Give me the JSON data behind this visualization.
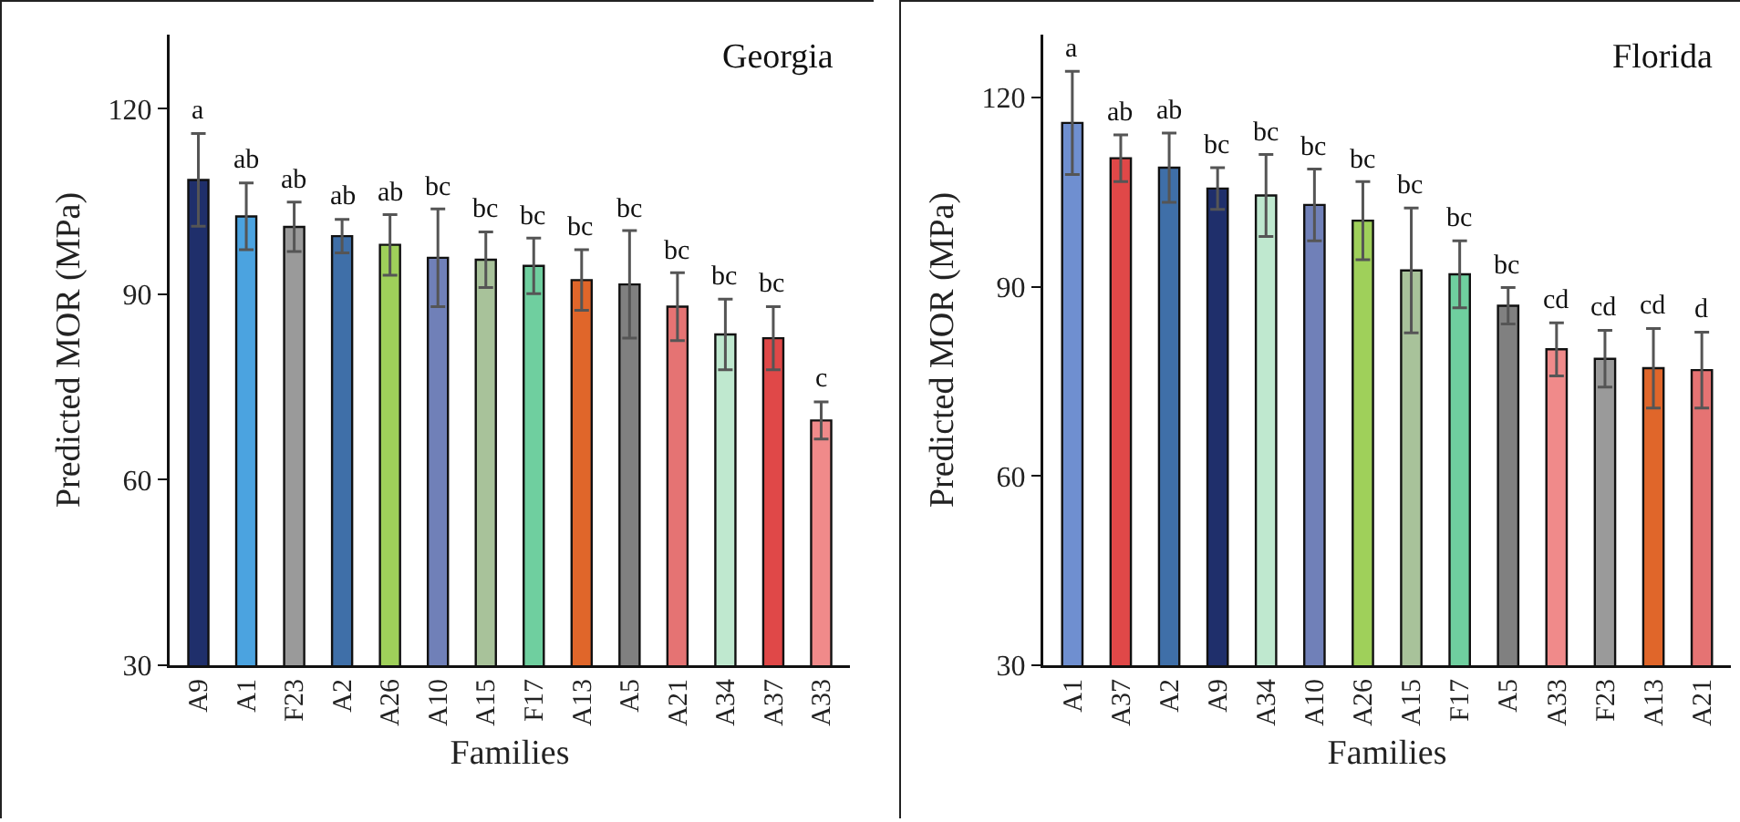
{
  "chart_data": [
    {
      "type": "bar",
      "title": "Georgia",
      "xlabel": "Families",
      "ylabel": "Predicted MOR (MPa)",
      "categories": [
        "A9",
        "A1",
        "F23",
        "A2",
        "A26",
        "A10",
        "A15",
        "F17",
        "A13",
        "A5",
        "A21",
        "A34",
        "A37",
        "A33"
      ],
      "values": [
        108.5,
        102.6,
        100.9,
        99.4,
        98.0,
        95.9,
        95.6,
        94.6,
        92.3,
        91.6,
        88.0,
        83.5,
        82.9,
        69.6
      ],
      "errors": [
        7.5,
        5.4,
        4.0,
        2.7,
        4.9,
        7.9,
        4.5,
        4.5,
        4.9,
        8.7,
        5.5,
        5.7,
        5.1,
        3.0
      ],
      "value_labels": [
        "a",
        "ab",
        "ab",
        "ab",
        "ab",
        "bc",
        "bc",
        "bc",
        "bc",
        "bc",
        "bc",
        "bc",
        "bc",
        "c"
      ],
      "colors": [
        "#1f2f6b",
        "#4ba3e0",
        "#9a9a9a",
        "#3f6fa8",
        "#9fd05a",
        "#7080b8",
        "#a8c29a",
        "#6fcf9f",
        "#e0662a",
        "#808080",
        "#e57373",
        "#bfe8cf",
        "#e04848",
        "#f08a8a"
      ],
      "ylim": [
        30,
        132
      ],
      "yticks": [
        30,
        60,
        90,
        120
      ]
    },
    {
      "type": "bar",
      "title": "Florida",
      "xlabel": "Families",
      "ylabel": "Predicted MOR (MPa)",
      "categories": [
        "A1",
        "A37",
        "A2",
        "A9",
        "A34",
        "A10",
        "A26",
        "A15",
        "F17",
        "A5",
        "A33",
        "F23",
        "A13",
        "A21"
      ],
      "values": [
        116.0,
        110.4,
        108.9,
        105.6,
        104.5,
        103.0,
        100.5,
        92.6,
        92.0,
        87.0,
        80.1,
        78.6,
        77.1,
        76.8
      ],
      "errors": [
        8.2,
        3.7,
        5.5,
        3.3,
        6.5,
        5.7,
        6.2,
        9.9,
        5.3,
        2.9,
        4.2,
        4.5,
        6.3,
        6.0
      ],
      "value_labels": [
        "a",
        "ab",
        "ab",
        "bc",
        "bc",
        "bc",
        "bc",
        "bc",
        "bc",
        "bc",
        "cd",
        "cd",
        "cd",
        "d"
      ],
      "colors": [
        "#6f8fd0",
        "#e04848",
        "#3f6fa8",
        "#1f2f6b",
        "#bfe8cf",
        "#7080b8",
        "#9fd05a",
        "#a8c29a",
        "#6fcf9f",
        "#808080",
        "#f08a8a",
        "#9a9a9a",
        "#e0662a",
        "#e57373"
      ],
      "ylim": [
        30,
        130
      ],
      "yticks": [
        30,
        60,
        90,
        120
      ]
    }
  ]
}
